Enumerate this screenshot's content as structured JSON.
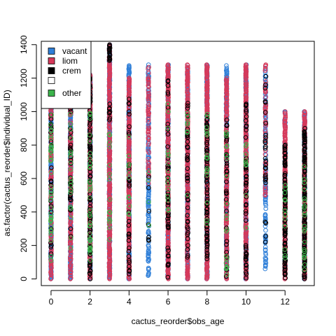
{
  "chart_data": {
    "type": "scatter",
    "title": "",
    "xlabel": "cactus_reorder$obs_age",
    "ylabel": "as.factor(cactus_reorder$individual_ID)",
    "xlim": [
      -0.5,
      13.5
    ],
    "ylim": [
      -40,
      1420
    ],
    "x_ticks": [
      "0",
      "2",
      "4",
      "6",
      "8",
      "10",
      "12"
    ],
    "y_ticks": [
      "0",
      "200",
      "400",
      "600",
      "800",
      "1000",
      "1200",
      "1400"
    ],
    "marker": "open-circle",
    "legend": {
      "position": "top-left",
      "entries": [
        {
          "label": "vacant",
          "color": "#2f7fd8"
        },
        {
          "label": "liom",
          "color": "#d6395a"
        },
        {
          "label": "crem",
          "color": "#000000"
        },
        {
          "label": "",
          "color": "#ffffff"
        },
        {
          "label": "other",
          "color": "#3cb44b"
        }
      ]
    },
    "series_colors": {
      "vacant": "#2f7fd8",
      "liom": "#d6395a",
      "crem": "#000000",
      "other": "#3cb44b"
    },
    "columns": [
      {
        "x": 0,
        "bands": [
          [
            0,
            1220,
            "vacant",
            1.0
          ],
          [
            0,
            1220,
            "liom",
            0.5
          ],
          [
            100,
            1100,
            "crem",
            0.12
          ],
          [
            100,
            1050,
            "other",
            0.15
          ]
        ]
      },
      {
        "x": 1,
        "bands": [
          [
            0,
            1220,
            "vacant",
            1.0
          ],
          [
            0,
            1220,
            "liom",
            0.6
          ],
          [
            250,
            1080,
            "crem",
            0.18
          ],
          [
            120,
            1000,
            "other",
            0.12
          ]
        ]
      },
      {
        "x": 2,
        "bands": [
          [
            0,
            1220,
            "vacant",
            0.9
          ],
          [
            0,
            1220,
            "liom",
            0.7
          ],
          [
            0,
            1200,
            "crem",
            0.35
          ],
          [
            100,
            1000,
            "other",
            0.15
          ]
        ]
      },
      {
        "x": 3,
        "bands": [
          [
            0,
            1400,
            "vacant",
            0.9
          ],
          [
            0,
            1400,
            "liom",
            0.85
          ],
          [
            1300,
            1400,
            "crem",
            0.5
          ],
          [
            900,
            1050,
            "crem",
            0.2
          ],
          [
            200,
            900,
            "other",
            0.08
          ]
        ]
      },
      {
        "x": 4,
        "bands": [
          [
            0,
            1280,
            "vacant",
            0.9
          ],
          [
            0,
            1200,
            "liom",
            0.8
          ],
          [
            0,
            1100,
            "crem",
            0.15
          ],
          [
            300,
            1000,
            "other",
            0.08
          ]
        ]
      },
      {
        "x": 5,
        "bands": [
          [
            20,
            1280,
            "vacant",
            0.55
          ],
          [
            550,
            1280,
            "liom",
            0.4
          ],
          [
            150,
            640,
            "crem",
            0.12
          ],
          [
            200,
            900,
            "other",
            0.05
          ]
        ]
      },
      {
        "x": 6,
        "bands": [
          [
            0,
            1280,
            "vacant",
            0.85
          ],
          [
            0,
            1280,
            "liom",
            0.85
          ],
          [
            0,
            1200,
            "crem",
            0.15
          ],
          [
            300,
            1100,
            "other",
            0.06
          ]
        ]
      },
      {
        "x": 7,
        "bands": [
          [
            0,
            1280,
            "vacant",
            0.8
          ],
          [
            0,
            1280,
            "liom",
            0.85
          ],
          [
            0,
            1050,
            "crem",
            0.18
          ],
          [
            400,
            1000,
            "other",
            0.05
          ]
        ]
      },
      {
        "x": 8,
        "bands": [
          [
            0,
            1280,
            "vacant",
            0.8
          ],
          [
            0,
            1280,
            "liom",
            0.85
          ],
          [
            100,
            1000,
            "crem",
            0.35
          ],
          [
            300,
            1000,
            "other",
            0.08
          ]
        ]
      },
      {
        "x": 9,
        "bands": [
          [
            0,
            1280,
            "vacant",
            0.7
          ],
          [
            0,
            1200,
            "liom",
            0.75
          ],
          [
            0,
            950,
            "crem",
            0.15
          ],
          [
            0,
            900,
            "other",
            0.08
          ]
        ]
      },
      {
        "x": 10,
        "bands": [
          [
            0,
            1280,
            "vacant",
            0.75
          ],
          [
            0,
            1280,
            "liom",
            0.85
          ],
          [
            0,
            1100,
            "crem",
            0.2
          ],
          [
            200,
            900,
            "other",
            0.06
          ]
        ]
      },
      {
        "x": 11,
        "bands": [
          [
            60,
            1280,
            "vacant",
            0.45
          ],
          [
            500,
            1280,
            "liom",
            0.35
          ],
          [
            200,
            1220,
            "crem",
            0.15
          ]
        ]
      },
      {
        "x": 12,
        "bands": [
          [
            0,
            1000,
            "vacant",
            0.35
          ],
          [
            0,
            1000,
            "liom",
            0.9
          ],
          [
            0,
            800,
            "crem",
            0.45
          ],
          [
            0,
            600,
            "other",
            0.06
          ]
        ]
      },
      {
        "x": 13,
        "bands": [
          [
            0,
            1000,
            "vacant",
            0.6
          ],
          [
            0,
            1000,
            "liom",
            0.85
          ],
          [
            0,
            900,
            "crem",
            0.6
          ],
          [
            0,
            700,
            "other",
            0.1
          ]
        ]
      }
    ]
  }
}
